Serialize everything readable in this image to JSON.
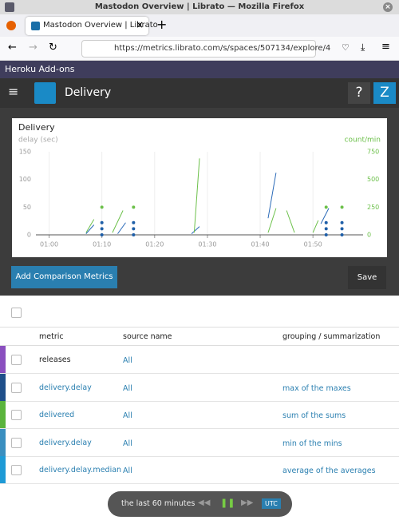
{
  "browser": {
    "window_title": "Mastodon Overview | Librato — Mozilla Firefox",
    "tab_title": "Mastodon Overview | Librato",
    "url": "https://metrics.librato.com/s/spaces/507134/explore/4"
  },
  "heroku_bar": "Heroku Add-ons",
  "app_header": {
    "title": "Delivery",
    "help": "?",
    "user": "Z"
  },
  "chart_data": {
    "type": "line",
    "title": "Delivery",
    "ylabel": "delay (sec)",
    "y2label": "count/min",
    "xlim": [
      -2.5,
      59.5
    ],
    "xticks": [
      {
        "value": 0,
        "label": "01:00"
      },
      {
        "value": 10,
        "label": "01:10"
      },
      {
        "value": 20,
        "label": "01:20"
      },
      {
        "value": 30,
        "label": "01:30"
      },
      {
        "value": 40,
        "label": "01:40"
      },
      {
        "value": 50,
        "label": "01:50"
      }
    ],
    "ylim": [
      0,
      150
    ],
    "yticks": [
      0,
      50,
      100,
      150
    ],
    "y2lim": [
      0,
      750
    ],
    "y2ticks": [
      0,
      250,
      500,
      750
    ],
    "grid": true,
    "series": [
      {
        "color": "#2a6ab8",
        "style": "line",
        "x": [
          7,
          8.5,
          9,
          13,
          14.5,
          15,
          27,
          28.5,
          29,
          41.5,
          43,
          43.5,
          51.5,
          53
        ],
        "values": [
          2,
          18,
          null,
          2,
          22,
          null,
          2,
          15,
          null,
          30,
          112,
          null,
          20,
          48
        ]
      },
      {
        "color": "#6cc04a",
        "style": "line",
        "axis": "y2",
        "x": [
          7,
          8.5,
          9,
          12,
          14,
          15,
          27.5,
          28.5,
          29,
          41.5,
          43,
          43.5,
          45,
          46.5,
          47,
          50,
          51
        ],
        "values": [
          20,
          140,
          null,
          20,
          220,
          null,
          20,
          690,
          null,
          20,
          240,
          null,
          220,
          20,
          null,
          20,
          130
        ]
      },
      {
        "color": "#6cc04a",
        "style": "points",
        "x": [
          10,
          16,
          52.5,
          55.5
        ],
        "values": [
          50,
          50,
          50,
          50
        ]
      },
      {
        "color": "#1f5fa8",
        "style": "points",
        "x": [
          10,
          10,
          10,
          16,
          16,
          16,
          52.5,
          52.5,
          52.5,
          55.5,
          55.5,
          55.5
        ],
        "values": [
          22,
          11,
          0,
          22,
          11,
          0,
          22,
          11,
          0,
          22,
          11,
          0
        ]
      }
    ]
  },
  "buttons": {
    "add": "Add Comparison Metrics",
    "save": "Save"
  },
  "table": {
    "headers": [
      "metric",
      "source name",
      "grouping / summarization"
    ],
    "rows": [
      {
        "color": "#8a4fbf",
        "metric": "releases",
        "source": "All"
      },
      {
        "color": "#1f4f8a",
        "metric": "delivery.delay",
        "source": "All",
        "grouping": "max of the maxes"
      },
      {
        "color": "#5ab43c",
        "metric": "delivered",
        "source": "All",
        "grouping": "sum of the sums"
      },
      {
        "color": "#3a8fc0",
        "metric": "delivery.delay",
        "source": "All",
        "grouping": "min of the mins"
      },
      {
        "color": "#1e9ad6",
        "metric": "delivery.delay.median",
        "source": "All",
        "grouping": "average of the averages"
      }
    ]
  },
  "time_control": {
    "range": "the last 60 minutes",
    "timezone": "UTC"
  }
}
